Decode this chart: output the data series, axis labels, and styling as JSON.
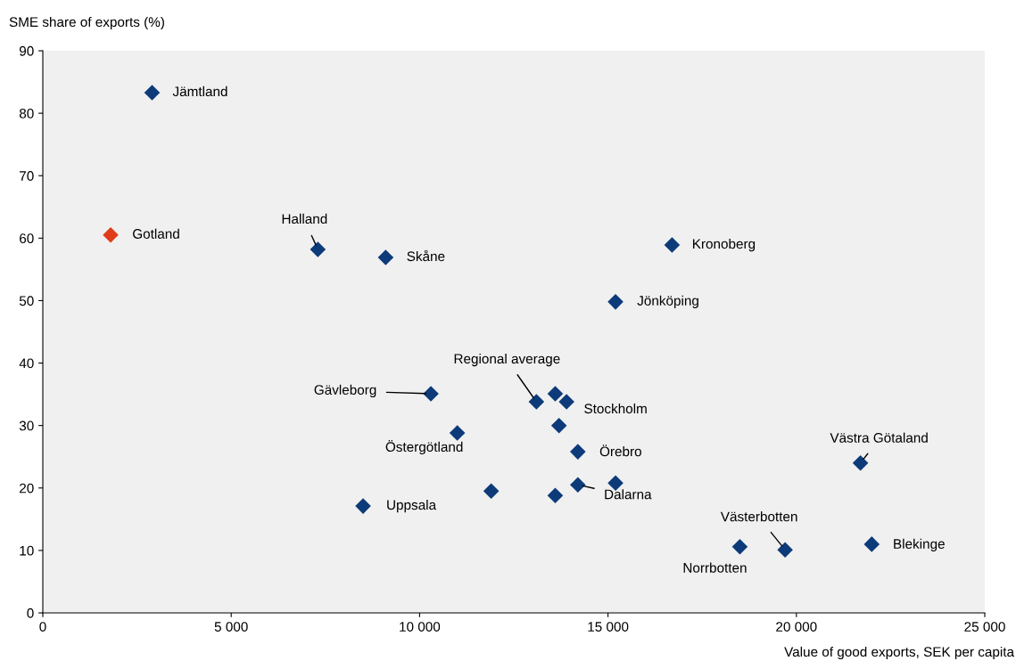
{
  "chart_data": {
    "type": "scatter",
    "xlabel": "Value of good exports, SEK per capita",
    "ylabel": "SME share of exports (%)",
    "marker": "diamond",
    "grid": false,
    "x": [
      2900,
      1800,
      7300,
      9100,
      16700,
      15200,
      10300,
      13100,
      13600,
      13900,
      13700,
      11000,
      14200,
      15200,
      14200,
      11900,
      13600,
      8500,
      21700,
      18500,
      19700,
      22000
    ],
    "values": [
      83.3,
      60.5,
      58.2,
      56.9,
      58.9,
      49.8,
      35.1,
      33.8,
      35.1,
      33.8,
      30.0,
      28.8,
      25.8,
      20.8,
      20.5,
      19.5,
      18.8,
      17.1,
      24.0,
      10.6,
      10.1,
      11.0
    ],
    "colors": [
      "#0d3b7a",
      "#e03c1a",
      "#0d3b7a",
      "#0d3b7a",
      "#0d3b7a",
      "#0d3b7a",
      "#0d3b7a",
      "#0d3b7a",
      "#0d3b7a",
      "#0d3b7a",
      "#0d3b7a",
      "#0d3b7a",
      "#0d3b7a",
      "#0d3b7a",
      "#0d3b7a",
      "#0d3b7a",
      "#0d3b7a",
      "#0d3b7a",
      "#0d3b7a",
      "#0d3b7a",
      "#0d3b7a",
      "#0d3b7a"
    ],
    "xlim": [
      0,
      25000
    ],
    "xticks": [
      0,
      {
        "value": 5000,
        "label": "5 000"
      },
      {
        "value": 10000,
        "label": "10 000"
      },
      {
        "value": 15000,
        "label": "15 000"
      },
      {
        "value": 20000,
        "label": "20 000"
      },
      {
        "value": 25000,
        "label": "25 000"
      }
    ],
    "ylim": [
      0,
      90
    ],
    "yticks": [
      0,
      10,
      20,
      30,
      40,
      50,
      60,
      70,
      80,
      90
    ],
    "annotations": [
      {
        "text": "Jämtland",
        "x": 2900,
        "y": 83.3
      },
      {
        "text": "Gotland",
        "x": 1800,
        "y": 60.5
      },
      {
        "text": "Halland",
        "x": 7300,
        "y": 58.2
      },
      {
        "text": "Skåne",
        "x": 9100,
        "y": 56.9
      },
      {
        "text": "Kronoberg",
        "x": 16700,
        "y": 58.9
      },
      {
        "text": "Jönköping",
        "x": 15200,
        "y": 49.8
      },
      {
        "text": "Gävleborg",
        "x": 10300,
        "y": 35.1
      },
      {
        "text": "Regional average",
        "x": 13100,
        "y": 33.8
      },
      {
        "text": "Stockholm",
        "x": 13900,
        "y": 33.8
      },
      {
        "text": "Östergötland",
        "x": 11000,
        "y": 28.8
      },
      {
        "text": "Örebro",
        "x": 14200,
        "y": 25.8
      },
      {
        "text": "Dalarna",
        "x": 14200,
        "y": 20.5
      },
      {
        "text": "Uppsala",
        "x": 8500,
        "y": 17.1
      },
      {
        "text": "Västra Götaland",
        "x": 21700,
        "y": 24.0
      },
      {
        "text": "Norrbotten",
        "x": 18500,
        "y": 10.6
      },
      {
        "text": "Västerbotten",
        "x": 19700,
        "y": 10.1
      },
      {
        "text": "Blekinge",
        "x": 22000,
        "y": 11.0
      }
    ]
  }
}
